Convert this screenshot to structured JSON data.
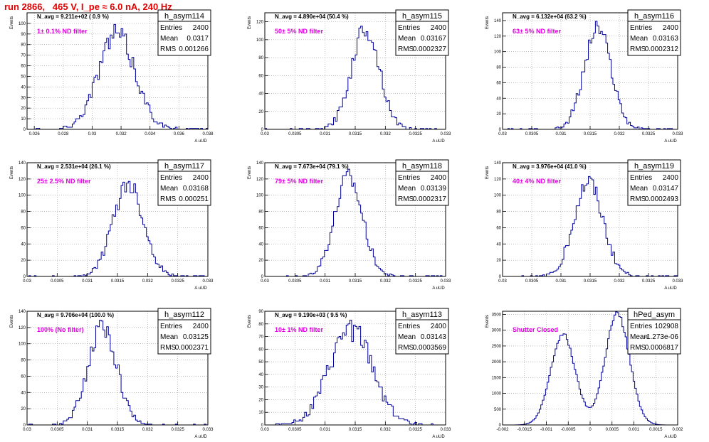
{
  "run_title": "run 2866,   465 V, I_pe ≈ 6.0 nA, 240 Hz",
  "colors": {
    "histogram": "#000099",
    "annotation": "#e000e0",
    "title": "#e00000",
    "grid": "#999999"
  },
  "stat_labels": {
    "entries": "Entries",
    "mean": "Mean",
    "rms": "RMS"
  },
  "y_axis_label": "Events",
  "x_axis_label": "A uUD",
  "chart_data": [
    {
      "type": "bar",
      "name": "h_asym114",
      "navg": "N_avg = 9.211e+02 ( 0.9 %)",
      "annotation": "1± 0.1% ND filter",
      "entries": "2400",
      "mean": "0.0317",
      "rms": "0.001266",
      "xlim": [
        0.0255,
        0.038
      ],
      "ylim": [
        0,
        110
      ],
      "xticks": [
        0.026,
        0.028,
        0.03,
        0.032,
        0.034,
        0.036,
        0.038
      ],
      "xtick_labels": [
        "0.026",
        "0.028",
        "0.03",
        "0.032",
        "0.034",
        "0.036",
        "0.038"
      ],
      "yticks": [
        0,
        10,
        20,
        30,
        40,
        50,
        60,
        70,
        80,
        90,
        100
      ],
      "ytick_labels": [
        "0",
        "10",
        "20",
        "30",
        "40",
        "50",
        "60",
        "70",
        "80",
        "90",
        "100"
      ],
      "peak": 100,
      "mu": 0.0317,
      "sigma": 0.00127,
      "seed": 114
    },
    {
      "type": "bar",
      "name": "h_asym115",
      "navg": "N_avg = 4.890e+04 (50.4 %)",
      "annotation": "50± 5% ND filter",
      "entries": "2400",
      "mean": "0.03167",
      "rms": "0.0002327",
      "xlim": [
        0.03,
        0.033
      ],
      "ylim": [
        0,
        130
      ],
      "xticks": [
        0.03,
        0.0305,
        0.031,
        0.0315,
        0.032,
        0.0325,
        0.033
      ],
      "xtick_labels": [
        "0.03",
        "0.0305",
        "0.031",
        "0.0315",
        "0.032",
        "0.0325",
        "0.033"
      ],
      "yticks": [
        0,
        20,
        40,
        60,
        80,
        100,
        120
      ],
      "ytick_labels": [
        "0",
        "20",
        "40",
        "60",
        "80",
        "100",
        "120"
      ],
      "peak": 126,
      "mu": 0.03167,
      "sigma": 0.000233,
      "seed": 115
    },
    {
      "type": "bar",
      "name": "h_asym116",
      "navg": "N_avg = 6.132e+04 (63.2 %)",
      "annotation": "63± 5% ND filter",
      "entries": "2400",
      "mean": "0.03163",
      "rms": "0.0002312",
      "xlim": [
        0.03,
        0.033
      ],
      "ylim": [
        0,
        150
      ],
      "xticks": [
        0.03,
        0.0305,
        0.031,
        0.0315,
        0.032,
        0.0325,
        0.033
      ],
      "xtick_labels": [
        "0.03",
        "0.0305",
        "0.031",
        "0.0315",
        "0.032",
        "0.0325",
        "0.033"
      ],
      "yticks": [
        0,
        20,
        40,
        60,
        80,
        100,
        120,
        140
      ],
      "ytick_labels": [
        "0",
        "20",
        "40",
        "60",
        "80",
        "100",
        "120",
        "140"
      ],
      "peak": 145,
      "mu": 0.03163,
      "sigma": 0.000231,
      "seed": 116
    },
    {
      "type": "bar",
      "name": "h_asym117",
      "navg": "N_avg = 2.531e+04 (26.1 %)",
      "annotation": "25± 2.5% ND filter",
      "entries": "2400",
      "mean": "0.03168",
      "rms": "0.000251",
      "xlim": [
        0.03,
        0.033
      ],
      "ylim": [
        0,
        140
      ],
      "xticks": [
        0.03,
        0.0305,
        0.031,
        0.0315,
        0.032,
        0.0325,
        0.033
      ],
      "xtick_labels": [
        "0.03",
        "0.0305",
        "0.031",
        "0.0315",
        "0.032",
        "0.0325",
        "0.033"
      ],
      "yticks": [
        0,
        20,
        40,
        60,
        80,
        100,
        120,
        140
      ],
      "ytick_labels": [
        "0",
        "20",
        "40",
        "60",
        "80",
        "100",
        "120",
        "140"
      ],
      "peak": 128,
      "mu": 0.03168,
      "sigma": 0.000251,
      "seed": 117
    },
    {
      "type": "bar",
      "name": "h_asym118",
      "navg": "N_avg = 7.673e+04 (79.1 %)",
      "annotation": "79± 5% ND filter",
      "entries": "2400",
      "mean": "0.03139",
      "rms": "0.0002317",
      "xlim": [
        0.03,
        0.033
      ],
      "ylim": [
        0,
        140
      ],
      "xticks": [
        0.03,
        0.0305,
        0.031,
        0.0315,
        0.032,
        0.0325,
        0.033
      ],
      "xtick_labels": [
        "0.03",
        "0.0305",
        "0.031",
        "0.0315",
        "0.032",
        "0.0325",
        "0.033"
      ],
      "yticks": [
        0,
        20,
        40,
        60,
        80,
        100,
        120,
        140
      ],
      "ytick_labels": [
        "0",
        "20",
        "40",
        "60",
        "80",
        "100",
        "120",
        "140"
      ],
      "peak": 135,
      "mu": 0.03139,
      "sigma": 0.000232,
      "seed": 118
    },
    {
      "type": "bar",
      "name": "h_asym119",
      "navg": "N_avg = 3.976e+04 (41.0 %)",
      "annotation": "40± 4% ND filter",
      "entries": "2400",
      "mean": "0.03147",
      "rms": "0.0002493",
      "xlim": [
        0.03,
        0.033
      ],
      "ylim": [
        0,
        140
      ],
      "xticks": [
        0.03,
        0.0305,
        0.031,
        0.0315,
        0.032,
        0.0325,
        0.033
      ],
      "xtick_labels": [
        "0.03",
        "0.0305",
        "0.031",
        "0.0315",
        "0.032",
        "0.0325",
        "0.033"
      ],
      "yticks": [
        0,
        20,
        40,
        60,
        80,
        100,
        120,
        140
      ],
      "ytick_labels": [
        "0",
        "20",
        "40",
        "60",
        "80",
        "100",
        "120",
        "140"
      ],
      "peak": 128,
      "mu": 0.03147,
      "sigma": 0.000249,
      "seed": 119
    },
    {
      "type": "bar",
      "name": "h_asym112",
      "navg": "N_avg = 9.706e+04 (100.0 %)",
      "annotation": "100% (No filter)",
      "entries": "2400",
      "mean": "0.03125",
      "rms": "0.0002371",
      "xlim": [
        0.03,
        0.033
      ],
      "ylim": [
        0,
        140
      ],
      "xticks": [
        0.03,
        0.0305,
        0.031,
        0.0315,
        0.032,
        0.0325,
        0.033
      ],
      "xtick_labels": [
        "0.03",
        "0.0305",
        "0.031",
        "0.0315",
        "0.032",
        "0.0325",
        "0.033"
      ],
      "yticks": [
        0,
        20,
        40,
        60,
        80,
        100,
        120,
        140
      ],
      "ytick_labels": [
        "0",
        "20",
        "40",
        "60",
        "80",
        "100",
        "120",
        "140"
      ],
      "peak": 135,
      "mu": 0.03125,
      "sigma": 0.000237,
      "seed": 112
    },
    {
      "type": "bar",
      "name": "h_asym113",
      "navg": "N_avg = 9.190e+03 ( 9.5 %)",
      "annotation": "10± 1% ND filter",
      "entries": "2400",
      "mean": "0.03143",
      "rms": "0.0003569",
      "xlim": [
        0.03,
        0.033
      ],
      "ylim": [
        0,
        90
      ],
      "xticks": [
        0.03,
        0.0305,
        0.031,
        0.0315,
        0.032,
        0.0325,
        0.033
      ],
      "xtick_labels": [
        "0.03",
        "0.0305",
        "0.031",
        "0.0315",
        "0.032",
        "0.0325",
        "0.033"
      ],
      "yticks": [
        0,
        10,
        20,
        30,
        40,
        50,
        60,
        70,
        80,
        90
      ],
      "ytick_labels": [
        "0",
        "10",
        "20",
        "30",
        "40",
        "50",
        "60",
        "70",
        "80",
        "90"
      ],
      "peak": 84,
      "mu": 0.03143,
      "sigma": 0.000357,
      "seed": 113
    },
    {
      "type": "bar",
      "name": "hPed_asym",
      "navg": "",
      "annotation": "Shutter Closed",
      "entries": "102908",
      "mean": "-1.273e-06",
      "rms": "0.0006817",
      "xlim": [
        -0.002,
        0.002
      ],
      "ylim": [
        0,
        3600
      ],
      "xticks": [
        -0.002,
        -0.0015,
        -0.001,
        -0.0005,
        0,
        0.0005,
        0.001,
        0.0015,
        0.002
      ],
      "xtick_labels": [
        "-0.002",
        "-0.0015",
        "-0.001",
        "-0.0005",
        "0",
        "0.0005",
        "0.001",
        "0.0015",
        "0.002"
      ],
      "yticks": [
        0,
        500,
        1000,
        1500,
        2000,
        2500,
        3000,
        3500
      ],
      "ytick_labels": [
        "0",
        "500",
        "1000",
        "1500",
        "2000",
        "2500",
        "3000",
        "3500"
      ],
      "bimodal": true,
      "peak": 3500,
      "peak_left": 2850,
      "mu1": -0.00062,
      "mu2": 0.00062,
      "sigma": 0.00028,
      "seed": 100
    }
  ]
}
